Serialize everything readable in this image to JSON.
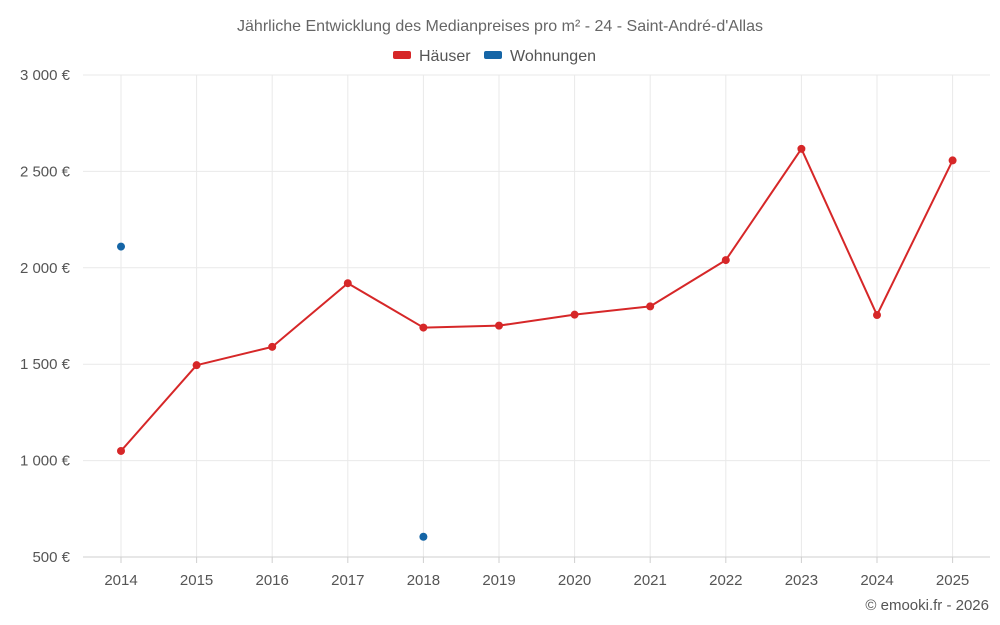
{
  "chart_data": {
    "type": "line",
    "title": "Jährliche Entwicklung des Medianpreises pro m² - 24 - Saint-André-d'Allas",
    "categories": [
      "2014",
      "2015",
      "2016",
      "2017",
      "2018",
      "2019",
      "2020",
      "2021",
      "2022",
      "2023",
      "2024",
      "2025"
    ],
    "series": [
      {
        "name": "Häuser",
        "color": "#d62728",
        "values": [
          1050,
          1495,
          1590,
          1920,
          1690,
          1700,
          1757,
          1800,
          2040,
          2617,
          1755,
          2557
        ],
        "line": true
      },
      {
        "name": "Wohnungen",
        "color": "#1565a6",
        "values": [
          2110,
          null,
          null,
          null,
          605,
          null,
          null,
          null,
          null,
          null,
          null,
          null
        ],
        "line": false
      }
    ],
    "ylim": [
      500,
      3000
    ],
    "yticks": [
      500,
      1000,
      1500,
      2000,
      2500,
      3000
    ],
    "ytick_labels": [
      "500 €",
      "1 000 €",
      "1 500 €",
      "2 000 €",
      "2 500 €",
      "3 000 €"
    ],
    "grid": true,
    "legend": "top-center"
  },
  "credit": "© emooki.fr - 2026"
}
